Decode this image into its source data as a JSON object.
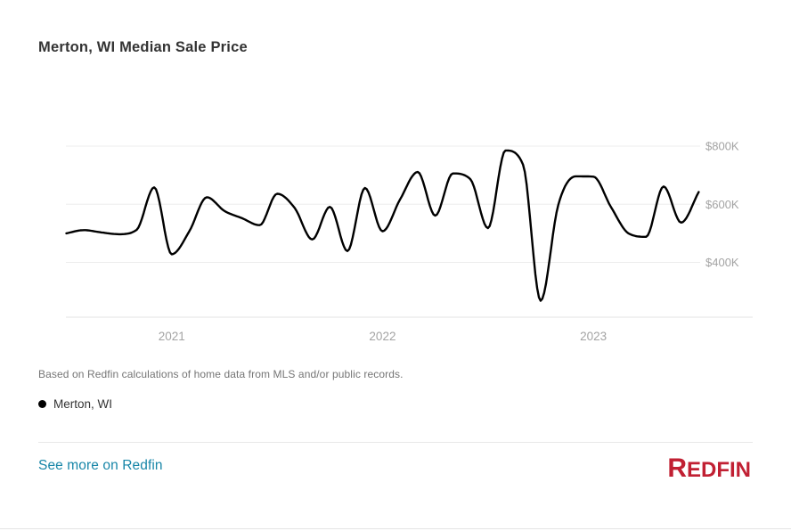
{
  "header": {
    "title": "Merton, WI Median Sale Price"
  },
  "chart_data": {
    "type": "line",
    "title": "Merton, WI Median Sale Price",
    "grid": true,
    "legend_position": "bottom-left",
    "y_unit": "USD thousands",
    "ylim": [
      210,
      810
    ],
    "line_color": "#000000",
    "grid_color": "#ededed",
    "axis_line_color": "#e3e3e3",
    "tick_label_color": "#a3a3a3",
    "series": [
      {
        "name": "Merton, WI",
        "color": "#000000",
        "x": [
          "2020-07",
          "2020-08",
          "2020-09",
          "2020-10",
          "2020-11",
          "2020-12",
          "2021-01",
          "2021-02",
          "2021-03",
          "2021-04",
          "2021-05",
          "2021-06",
          "2021-07",
          "2021-08",
          "2021-09",
          "2021-10",
          "2021-11",
          "2021-12",
          "2022-01",
          "2022-02",
          "2022-03",
          "2022-04",
          "2022-05",
          "2022-06",
          "2022-07",
          "2022-08",
          "2022-09",
          "2022-10",
          "2022-11",
          "2022-12",
          "2023-01",
          "2023-02",
          "2023-03",
          "2023-04",
          "2023-05",
          "2023-06",
          "2023-07"
        ],
        "values": [
          500,
          511,
          503,
          497,
          512,
          658,
          428,
          507,
          624,
          577,
          552,
          528,
          636,
          587,
          479,
          591,
          439,
          656,
          507,
          617,
          711,
          561,
          706,
          686,
          518,
          785,
          736,
          268,
          597,
          696,
          695,
          591,
          500,
          488,
          661,
          537,
          642
        ]
      }
    ],
    "y_ticks": [
      {
        "label": "$800K",
        "value": 800
      },
      {
        "label": "$600K",
        "value": 600
      },
      {
        "label": "$400K",
        "value": 400
      }
    ],
    "x_ticks": [
      {
        "label": "2021",
        "month": "2021-01"
      },
      {
        "label": "2022",
        "month": "2022-01"
      },
      {
        "label": "2023",
        "month": "2023-01"
      }
    ]
  },
  "footer": {
    "note": "Based on Redfin calculations of home data from MLS and/or public records.",
    "legend_label": "Merton, WI",
    "legend_marker_color": "#000000",
    "link_label": "See more on Redfin",
    "link_color": "#1886a8",
    "logo_text": "REDFIN",
    "logo_color": "#c12033"
  }
}
